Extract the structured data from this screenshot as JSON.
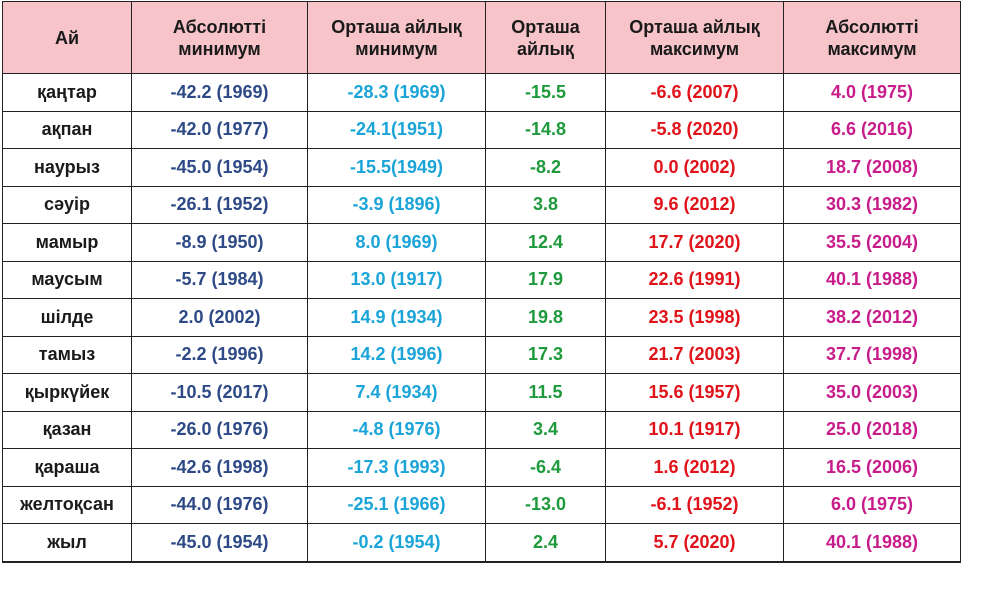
{
  "table": {
    "headers": [
      "Ай",
      "Абсолютті\nминимум",
      "Орташа айлық\nминимум",
      "Орташа\nайлық",
      "Орташа айлық\nмаксимум",
      "Абсолютті\nмаксимум"
    ],
    "rows": [
      [
        "қаңтар",
        "-42.2 (1969)",
        "-28.3 (1969)",
        "-15.5",
        "-6.6 (2007)",
        "4.0 (1975)"
      ],
      [
        "ақпан",
        "-42.0 (1977)",
        "-24.1(1951)",
        "-14.8",
        "-5.8 (2020)",
        "6.6 (2016)"
      ],
      [
        "наурыз",
        "-45.0 (1954)",
        "-15.5(1949)",
        "-8.2",
        "0.0 (2002)",
        "18.7 (2008)"
      ],
      [
        "сәуір",
        "-26.1 (1952)",
        "-3.9 (1896)",
        "3.8",
        "9.6 (2012)",
        "30.3 (1982)"
      ],
      [
        "мамыр",
        "-8.9 (1950)",
        "8.0 (1969)",
        "12.4",
        "17.7 (2020)",
        "35.5 (2004)"
      ],
      [
        "маусым",
        "-5.7 (1984)",
        "13.0 (1917)",
        "17.9",
        "22.6 (1991)",
        "40.1 (1988)"
      ],
      [
        "шілде",
        "2.0 (2002)",
        "14.9 (1934)",
        "19.8",
        "23.5 (1998)",
        "38.2 (2012)"
      ],
      [
        "тамыз",
        "-2.2 (1996)",
        "14.2 (1996)",
        "17.3",
        "21.7 (2003)",
        "37.7 (1998)"
      ],
      [
        "қыркүйек",
        "-10.5 (2017)",
        "7.4 (1934)",
        "11.5",
        "15.6 (1957)",
        "35.0 (2003)"
      ],
      [
        "қазан",
        "-26.0 (1976)",
        "-4.8 (1976)",
        "3.4",
        "10.1 (1917)",
        "25.0 (2018)"
      ],
      [
        "қараша",
        "-42.6 (1998)",
        "-17.3 (1993)",
        "-6.4",
        "1.6 (2012)",
        "16.5 (2006)"
      ],
      [
        "желтоқсан",
        "-44.0 (1976)",
        "-25.1 (1966)",
        "-13.0",
        "-6.1 (1952)",
        "6.0 (1975)"
      ],
      [
        "жыл",
        "-45.0 (1954)",
        "-0.2 (1954)",
        "2.4",
        "5.7 (2020)",
        "40.1 (1988)"
      ]
    ]
  },
  "colors": {
    "header_background": "#f6c4c9",
    "month_text": "#1a1a1a",
    "absolute_minimum": "#2e4a86",
    "average_minimum": "#1aa4d8",
    "average": "#1e9a3c",
    "average_maximum": "#e0121a",
    "absolute_maximum": "#c81c8a"
  }
}
